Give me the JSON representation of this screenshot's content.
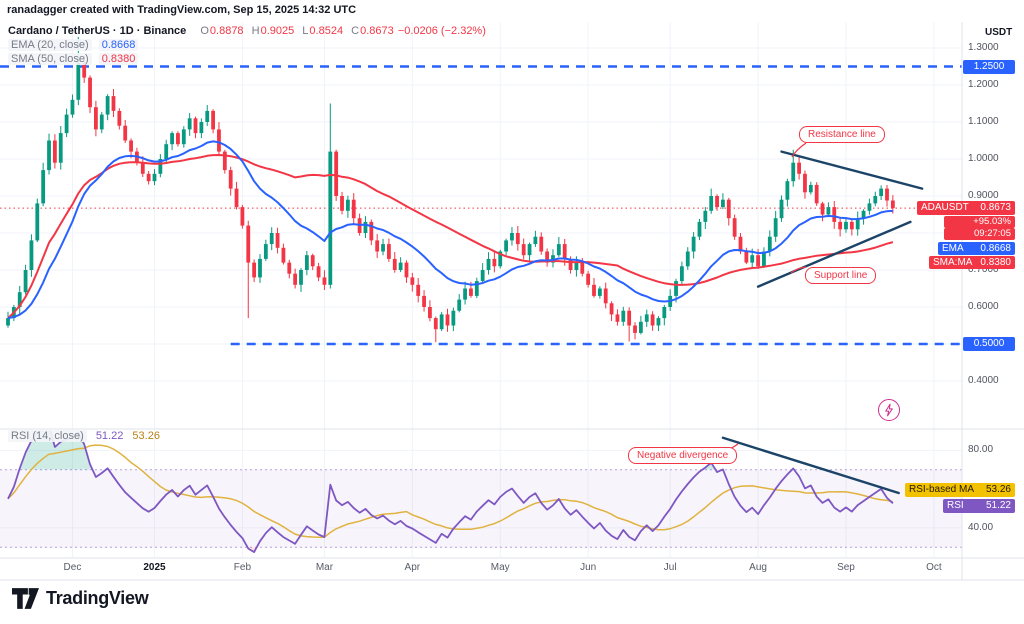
{
  "header": {
    "attribution": "ranadagger created with TradingView.com, Sep 15, 2025 14:32 UTC"
  },
  "symbol_legend": {
    "title": "Cardano / TetherUS · 1D · Binance",
    "ohlc": {
      "open_label": "O",
      "open": "0.8878",
      "high_label": "H",
      "high": "0.9025",
      "low_label": "L",
      "low": "0.8524",
      "close_label": "C",
      "close": "0.8673",
      "change": "−0.0206 (−2.32%)"
    },
    "ema": {
      "label": "EMA (20, close)",
      "value": "0.8668"
    },
    "sma": {
      "label": "SMA (50, close)",
      "value": "0.8380"
    }
  },
  "rsi_legend": {
    "label": "RSI (14, close)",
    "rsi_value": "51.22",
    "ma_value": "53.26"
  },
  "axis": {
    "currency": "USDT",
    "price_ticks": [
      "1.3000",
      "1.2000",
      "1.1000",
      "1.0000",
      "0.9000",
      "0.8000",
      "0.7000",
      "0.6000",
      "0.5000",
      "0.4000"
    ],
    "rsi_ticks": [
      "80.00",
      "40.00"
    ],
    "badges": {
      "upper_level": "1.2500",
      "symbol": "ADAUSDT",
      "price": "0.8673",
      "change_pct": "+95.03%",
      "countdown": "09:27:05",
      "ema_label": "EMA",
      "ema": "0.8668",
      "sma_label": "SMA:MA",
      "sma": "0.8380",
      "lower_level": "0.5000",
      "rsi_ma_label": "RSI-based MA",
      "rsi_ma": "53.26",
      "rsi_label": "RSI",
      "rsi": "51.22"
    }
  },
  "annotations": {
    "resistance_label": "Resistance line",
    "support_label": "Support line",
    "divergence_label": "Negative divergence"
  },
  "time_axis": {
    "months": [
      {
        "label": "Dec",
        "i": 11
      },
      {
        "label": "2025",
        "i": 25,
        "strong": true
      },
      {
        "label": "Feb",
        "i": 40
      },
      {
        "label": "Mar",
        "i": 54
      },
      {
        "label": "Apr",
        "i": 69
      },
      {
        "label": "May",
        "i": 84
      },
      {
        "label": "Jun",
        "i": 99
      },
      {
        "label": "Jul",
        "i": 113
      },
      {
        "label": "Aug",
        "i": 128
      },
      {
        "label": "Sep",
        "i": 143
      },
      {
        "label": "Oct",
        "i": 158
      }
    ]
  },
  "footer": {
    "brand": "TradingView"
  },
  "chart_data": [
    {
      "type": "candlestick",
      "pane": "price",
      "title": "Cardano / TetherUS · 1D · Binance",
      "ylim": [
        0.28,
        1.37
      ],
      "yticks": [
        1.3,
        1.2,
        1.1,
        1.0,
        0.9,
        0.8,
        0.7,
        0.6,
        0.5,
        0.4
      ],
      "up_color": "#089981",
      "down_color": "#F23645",
      "first_open": 0.55,
      "closes": [
        0.57,
        0.6,
        0.64,
        0.7,
        0.78,
        0.88,
        0.97,
        1.05,
        0.99,
        1.07,
        1.12,
        1.16,
        1.26,
        1.22,
        1.14,
        1.08,
        1.12,
        1.17,
        1.13,
        1.09,
        1.05,
        1.02,
        0.99,
        0.96,
        0.94,
        0.96,
        1.0,
        1.04,
        1.07,
        1.04,
        1.08,
        1.11,
        1.07,
        1.1,
        1.13,
        1.08,
        1.02,
        0.97,
        0.92,
        0.87,
        0.82,
        0.72,
        0.68,
        0.73,
        0.77,
        0.8,
        0.76,
        0.72,
        0.69,
        0.66,
        0.7,
        0.74,
        0.71,
        0.68,
        0.66,
        1.02,
        0.9,
        0.86,
        0.89,
        0.84,
        0.8,
        0.83,
        0.78,
        0.75,
        0.77,
        0.73,
        0.7,
        0.72,
        0.68,
        0.66,
        0.63,
        0.6,
        0.57,
        0.54,
        0.58,
        0.55,
        0.59,
        0.62,
        0.65,
        0.63,
        0.67,
        0.7,
        0.73,
        0.71,
        0.75,
        0.78,
        0.8,
        0.77,
        0.74,
        0.77,
        0.79,
        0.75,
        0.72,
        0.74,
        0.77,
        0.73,
        0.7,
        0.72,
        0.69,
        0.66,
        0.63,
        0.65,
        0.61,
        0.58,
        0.56,
        0.59,
        0.55,
        0.53,
        0.56,
        0.58,
        0.55,
        0.57,
        0.6,
        0.63,
        0.67,
        0.71,
        0.75,
        0.79,
        0.83,
        0.86,
        0.9,
        0.87,
        0.89,
        0.84,
        0.79,
        0.75,
        0.72,
        0.74,
        0.71,
        0.75,
        0.79,
        0.84,
        0.89,
        0.94,
        0.99,
        0.96,
        0.91,
        0.93,
        0.88,
        0.85,
        0.87,
        0.83,
        0.81,
        0.83,
        0.81,
        0.84,
        0.86,
        0.88,
        0.9,
        0.92,
        0.8878,
        0.8673
      ],
      "wick_overrides": {
        "12": {
          "high": 1.33
        },
        "41": {
          "low": 0.57
        },
        "55": {
          "high": 1.15,
          "low": 0.65
        },
        "73": {
          "low": 0.505
        },
        "106": {
          "low": 0.507
        },
        "120": {
          "high": 0.92
        },
        "134": {
          "high": 1.025
        }
      },
      "last_candle": {
        "open": 0.8878,
        "high": 0.9025,
        "low": 0.8524,
        "close": 0.8673
      },
      "overlays": [
        {
          "name": "EMA (20, close)",
          "type": "ema",
          "period": 20,
          "color": "#2962FF",
          "value": 0.8668
        },
        {
          "name": "SMA (50, close)",
          "type": "sma",
          "period": 50,
          "color": "#F23645",
          "value": 0.838
        }
      ],
      "levels": [
        {
          "name": "resistance-level",
          "value": 1.25,
          "style": "dashed",
          "color": "#2962FF",
          "from_i": 0
        },
        {
          "name": "support-level",
          "value": 0.5,
          "style": "dashed",
          "color": "#2962FF",
          "from_i": 38
        },
        {
          "name": "current-price",
          "value": 0.8673,
          "style": "dotted",
          "color": "#F23645",
          "from_i": 0
        }
      ],
      "trendlines": [
        {
          "name": "resistance-line",
          "i1": 132,
          "p1": 1.02,
          "i2": 156,
          "p2": 0.92,
          "color": "#1B4468"
        },
        {
          "name": "support-line",
          "i1": 128,
          "p1": 0.655,
          "i2": 154,
          "p2": 0.83,
          "color": "#1B4468"
        }
      ]
    },
    {
      "type": "line",
      "pane": "rsi",
      "name": "RSI (14, close)",
      "period": 14,
      "ma_period": 14,
      "ylim": [
        25,
        90
      ],
      "yticks": [
        80,
        40
      ],
      "bands": [
        70,
        30
      ],
      "colors": {
        "rsi": "#7E57C2",
        "ma": "#E0B23F",
        "overbought_fill": "rgba(8,153,129,0.20)",
        "oversold_fill": "rgba(242,54,69,0.16)",
        "band_fill": "rgba(126,87,194,0.06)"
      },
      "current": {
        "rsi": 51.22,
        "ma": 53.26
      },
      "divergence_line": {
        "i1": 122,
        "r1": 86.5,
        "i2": 152,
        "r2": 58,
        "color": "#1B4468"
      }
    }
  ]
}
